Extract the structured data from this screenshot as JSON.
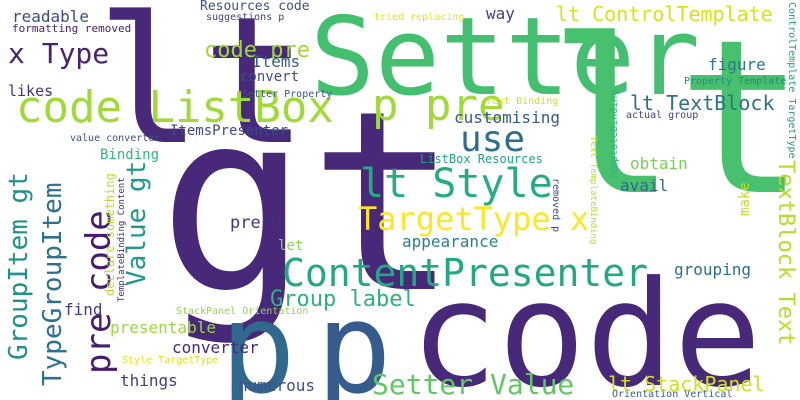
{
  "words": [
    {
      "text": "lt",
      "color": "#482878"
    },
    {
      "text": "gt",
      "color": "#482878"
    },
    {
      "text": "Setter",
      "color": "#44bf70"
    },
    {
      "text": "lt",
      "color": "#48c16e"
    },
    {
      "text": "p",
      "color": "#31688e"
    },
    {
      "text": "code",
      "color": "#482878"
    },
    {
      "text": "p",
      "color": "#365c8d"
    },
    {
      "text": "code ListBox",
      "color": "#a0da39"
    },
    {
      "text": "p pre",
      "color": "#a0da39"
    },
    {
      "text": "use",
      "color": "#2d708e"
    },
    {
      "text": "lt Style",
      "color": "#25ac82"
    },
    {
      "text": "TargetType x",
      "color": "#fde725"
    },
    {
      "text": "ContentPresenter",
      "color": "#22a884"
    },
    {
      "text": "Group label",
      "color": "#2db27d"
    },
    {
      "text": "Setter Value",
      "color": "#5ec962"
    },
    {
      "text": "lt StackPanel",
      "color": "#d0e11c"
    },
    {
      "text": "lt TextBlock",
      "color": "#2c728e"
    },
    {
      "text": "TextBlock Text",
      "color": "#b5de2b"
    },
    {
      "text": "lt ControlTemplate",
      "color": "#d8e219"
    },
    {
      "text": "x Type",
      "color": "#482173"
    },
    {
      "text": "code pre",
      "color": "#9fda3a"
    },
    {
      "text": "pre code",
      "color": "#481b6d"
    },
    {
      "text": "Value gt",
      "color": "#1e9b8a"
    },
    {
      "text": "GroupItem gt",
      "color": "#21918c"
    },
    {
      "text": "TypeGroupItem",
      "color": "#2d718e"
    },
    {
      "text": "readable",
      "color": "#3e4a89"
    },
    {
      "text": "Resources code",
      "color": "#3b528b"
    },
    {
      "text": "suggestions p",
      "color": "#424086"
    },
    {
      "text": "formatting removed",
      "color": "#482173"
    },
    {
      "text": "tried replacing",
      "color": "#e5e419"
    },
    {
      "text": "way",
      "color": "#433e85"
    },
    {
      "text": "Items",
      "color": "#38598c"
    },
    {
      "text": "figure",
      "color": "#2a788e"
    },
    {
      "text": "convert",
      "color": "#3d4e8a"
    },
    {
      "text": "Property Template",
      "color": "#24868e"
    },
    {
      "text": "likes",
      "color": "#46337e"
    },
    {
      "text": "Setter Property",
      "color": "#3a548c"
    },
    {
      "text": "ItemsPresenter",
      "color": "#3f4788"
    },
    {
      "text": "Text Binding",
      "color": "#d0e11c"
    },
    {
      "text": "customising",
      "color": "#38588c"
    },
    {
      "text": "value converter",
      "color": "#3b528b"
    },
    {
      "text": "TemplateBinding",
      "color": "#31b57b"
    },
    {
      "text": "actual group",
      "color": "#433e85"
    },
    {
      "text": "ControlTemplate TargetType",
      "color": "#1f9f88"
    },
    {
      "text": "ListBox Resources",
      "color": "#20a386"
    },
    {
      "text": "Binding",
      "color": "#32b67a"
    },
    {
      "text": "obtain",
      "color": "#77d153"
    },
    {
      "text": "avail",
      "color": "#31688e"
    },
    {
      "text": "Text TemplateBinding",
      "color": "#b5de2b"
    },
    {
      "text": "removed p",
      "color": "#3e4989"
    },
    {
      "text": "make",
      "color": "#c2df23"
    },
    {
      "text": "declare something",
      "color": "#b8de29"
    },
    {
      "text": "TemplateBinding Content",
      "color": "#472d7b"
    },
    {
      "text": "pre p",
      "color": "#46327e"
    },
    {
      "text": "appearance",
      "color": "#26828e"
    },
    {
      "text": "let",
      "color": "#8bd646"
    },
    {
      "text": "grouping",
      "color": "#2e6f8e"
    },
    {
      "text": "find",
      "color": "#453882"
    },
    {
      "text": "presentable",
      "color": "#9dd93b"
    },
    {
      "text": "StackPanel Orientation",
      "color": "#90d743"
    },
    {
      "text": "converter",
      "color": "#482878"
    },
    {
      "text": "Style TargetType",
      "color": "#e2e418"
    },
    {
      "text": "things",
      "color": "#433e85"
    },
    {
      "text": "numerous",
      "color": "#3b528b"
    },
    {
      "text": "Orientation Vertical",
      "color": "#355f8d"
    }
  ]
}
